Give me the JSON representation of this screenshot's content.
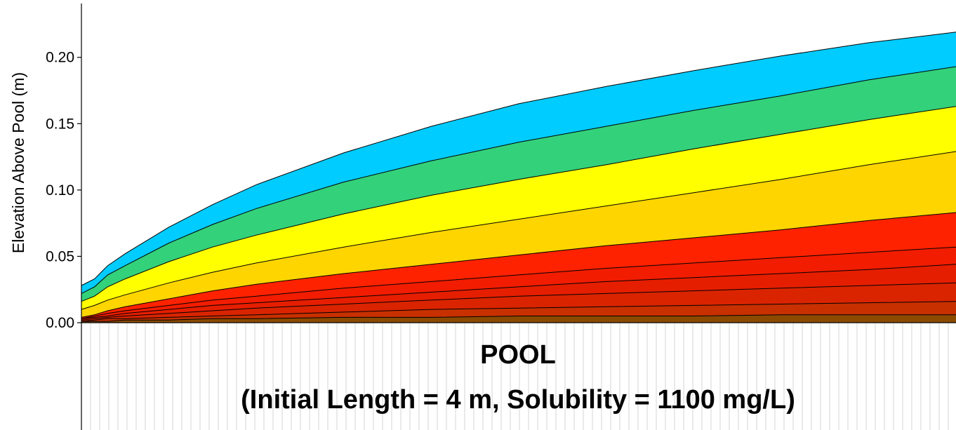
{
  "chart_data": {
    "type": "area",
    "ylabel": "Elevation Above Pool (m)",
    "xlabel": "",
    "ylim": [
      0.0,
      0.23
    ],
    "yticks": [
      0.0,
      0.05,
      0.1,
      0.15,
      0.2
    ],
    "ytick_labels": [
      "0.00",
      "0.05",
      "0.10",
      "0.15",
      "0.20"
    ],
    "xlim": [
      0,
      1
    ],
    "grid": "vertical",
    "legend": "none",
    "pool_label": "POOL",
    "pool_caption": "(Initial Length = 4 m, Solubility = 1100 mg/L)",
    "x": [
      0.0,
      0.015,
      0.03,
      0.05,
      0.1,
      0.15,
      0.2,
      0.3,
      0.4,
      0.5,
      0.6,
      0.7,
      0.8,
      0.9,
      1.0
    ],
    "series": [
      {
        "color": "#00CCFF",
        "values": [
          0.028,
          0.033,
          0.043,
          0.052,
          0.072,
          0.089,
          0.104,
          0.128,
          0.148,
          0.165,
          0.178,
          0.19,
          0.201,
          0.211,
          0.219
        ]
      },
      {
        "color": "#33D17A",
        "values": [
          0.022,
          0.027,
          0.036,
          0.043,
          0.06,
          0.074,
          0.086,
          0.106,
          0.122,
          0.136,
          0.148,
          0.16,
          0.171,
          0.183,
          0.193
        ]
      },
      {
        "color": "#FFFF00",
        "values": [
          0.016,
          0.02,
          0.027,
          0.033,
          0.046,
          0.057,
          0.066,
          0.082,
          0.096,
          0.108,
          0.119,
          0.131,
          0.142,
          0.153,
          0.163
        ]
      },
      {
        "color": "#FFD500",
        "values": [
          0.01,
          0.013,
          0.017,
          0.021,
          0.03,
          0.038,
          0.045,
          0.057,
          0.068,
          0.078,
          0.088,
          0.098,
          0.108,
          0.119,
          0.129
        ]
      },
      {
        "color": "#FF2200",
        "values": [
          0.004,
          0.006,
          0.009,
          0.012,
          0.018,
          0.024,
          0.029,
          0.037,
          0.044,
          0.051,
          0.058,
          0.064,
          0.07,
          0.077,
          0.083
        ]
      },
      {
        "color": "#F21C00",
        "values": [
          0.003,
          0.005,
          0.007,
          0.009,
          0.013,
          0.017,
          0.02,
          0.026,
          0.031,
          0.036,
          0.041,
          0.045,
          0.049,
          0.053,
          0.057
        ]
      },
      {
        "color": "#E61E00",
        "values": [
          0.003,
          0.004,
          0.005,
          0.007,
          0.01,
          0.013,
          0.015,
          0.019,
          0.023,
          0.027,
          0.031,
          0.034,
          0.037,
          0.04,
          0.044
        ]
      },
      {
        "color": "#DA2400",
        "values": [
          0.002,
          0.003,
          0.004,
          0.005,
          0.007,
          0.009,
          0.011,
          0.014,
          0.017,
          0.02,
          0.022,
          0.024,
          0.026,
          0.028,
          0.03
        ]
      },
      {
        "color": "#C83000",
        "values": [
          0.001,
          0.002,
          0.003,
          0.003,
          0.004,
          0.005,
          0.006,
          0.008,
          0.01,
          0.011,
          0.012,
          0.013,
          0.014,
          0.015,
          0.016
        ]
      },
      {
        "color": "#8B4A00",
        "values": [
          0.001,
          0.001,
          0.001,
          0.002,
          0.002,
          0.003,
          0.003,
          0.004,
          0.004,
          0.005,
          0.005,
          0.005,
          0.006,
          0.006,
          0.006
        ]
      }
    ]
  }
}
